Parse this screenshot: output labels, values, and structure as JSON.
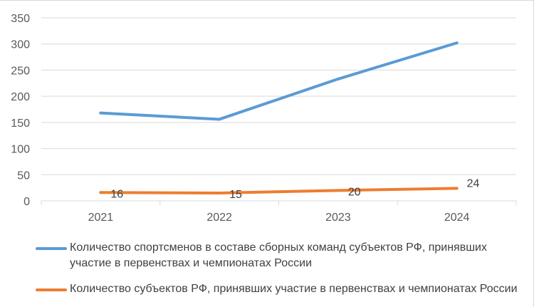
{
  "chart_data": {
    "type": "line",
    "title": "",
    "xlabel": "",
    "ylabel": "",
    "categories": [
      "2021",
      "2022",
      "2023",
      "2024"
    ],
    "ylim": [
      0,
      350
    ],
    "yticks": [
      "0",
      "50",
      "100",
      "150",
      "200",
      "250",
      "300",
      "350"
    ],
    "grid": true,
    "legend_position": "bottom",
    "series": [
      {
        "name": "Количество спортсменов в составе сборных команд субъектов РФ, принявших участие в первенствах и чемпионатах России",
        "values": [
          168,
          156,
          233,
          302
        ],
        "color": "#5b9bd5",
        "data_labels": []
      },
      {
        "name": "Количество субъектов РФ, принявших участие в первенствах и чемпионатах России",
        "values": [
          16,
          15,
          20,
          24
        ],
        "color": "#ed7d31",
        "data_labels": [
          "16",
          "15",
          "20",
          "24"
        ]
      }
    ]
  }
}
